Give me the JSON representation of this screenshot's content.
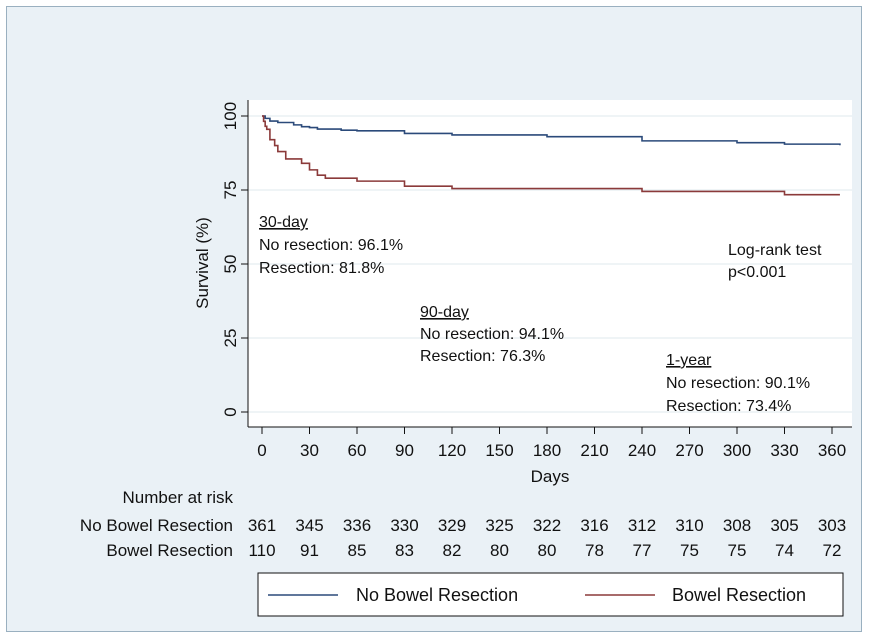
{
  "chart_data": {
    "type": "line",
    "xlabel": "Days",
    "ylabel": "Survival (%)",
    "xlim": [
      0,
      365
    ],
    "ylim": [
      0,
      100
    ],
    "x_ticks": [
      0,
      30,
      60,
      90,
      120,
      150,
      180,
      210,
      240,
      270,
      300,
      330,
      360
    ],
    "y_ticks": [
      0,
      25,
      50,
      75,
      100
    ],
    "grid": "horizontal",
    "legend_position": "bottom",
    "series": [
      {
        "name": "No Bowel Resection",
        "color": "#2b4a7a",
        "x": [
          0,
          2,
          5,
          10,
          20,
          25,
          30,
          35,
          50,
          60,
          90,
          120,
          180,
          240,
          300,
          330,
          365
        ],
        "y": [
          100,
          99.2,
          98.3,
          97.8,
          97,
          96.4,
          96.1,
          95.6,
          95.2,
          95,
          94.1,
          93.6,
          93,
          91.6,
          91,
          90.5,
          90.1
        ]
      },
      {
        "name": "Bowel Resection",
        "color": "#8b3a3a",
        "x": [
          0,
          1,
          2,
          3,
          5,
          8,
          10,
          15,
          20,
          25,
          30,
          35,
          40,
          60,
          70,
          90,
          120,
          240,
          330,
          365
        ],
        "y": [
          100,
          98.2,
          96.5,
          95.5,
          92,
          90,
          88,
          85.5,
          85.5,
          84,
          81.8,
          80,
          79,
          78,
          78,
          76.3,
          75.5,
          74.5,
          73.4,
          73.4
        ]
      }
    ],
    "annotations": [
      {
        "title": "30-day",
        "lines": [
          "No resection: 96.1%",
          "Resection: 81.8%"
        ]
      },
      {
        "title": "90-day",
        "lines": [
          "No resection: 94.1%",
          "Resection: 76.3%"
        ]
      },
      {
        "title": "1-year",
        "lines": [
          "No resection: 90.1%",
          "Resection: 73.4%"
        ]
      },
      {
        "title": "",
        "lines": [
          "Log-rank test",
          "p<0.001"
        ]
      }
    ],
    "risk_table": {
      "header": "Number at risk",
      "rows": [
        {
          "label": "No Bowel Resection",
          "values": [
            361,
            345,
            336,
            330,
            329,
            325,
            322,
            316,
            312,
            310,
            308,
            305,
            303
          ]
        },
        {
          "label": "Bowel Resection",
          "values": [
            110,
            91,
            85,
            83,
            82,
            80,
            80,
            78,
            77,
            75,
            75,
            74,
            72
          ]
        }
      ]
    }
  }
}
